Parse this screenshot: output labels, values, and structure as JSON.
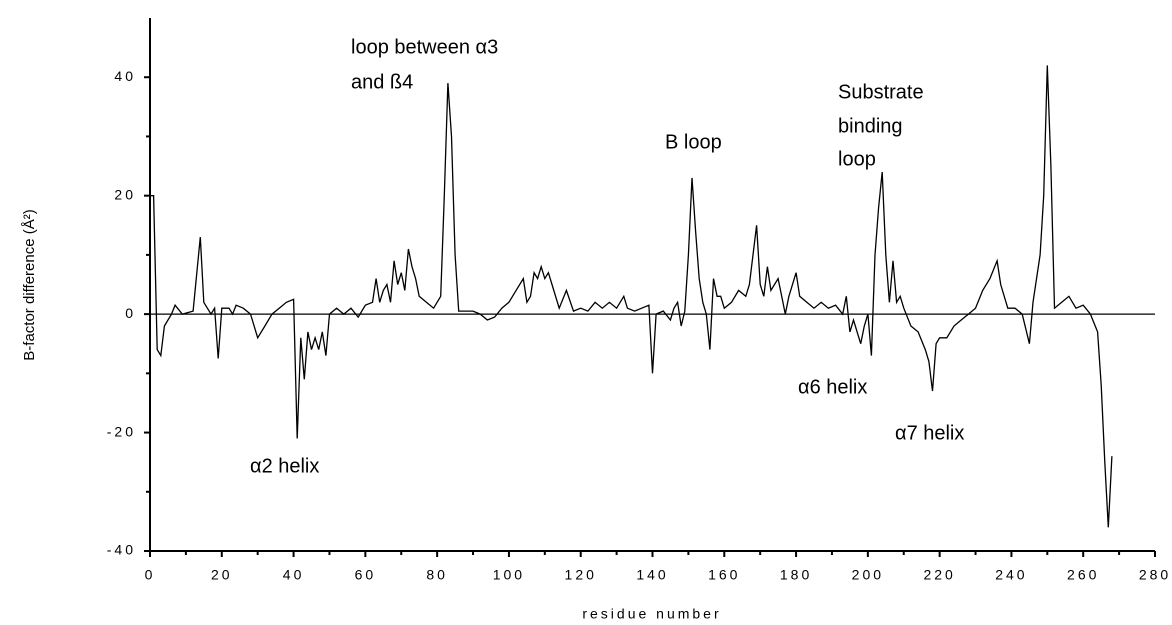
{
  "chart_data": {
    "type": "line",
    "x_label": "residue number",
    "y_label": "B-factor difference (Å²)",
    "xlim": [
      0,
      280
    ],
    "ylim": [
      -40,
      50
    ],
    "xticks": [
      0,
      20,
      40,
      60,
      80,
      100,
      120,
      140,
      160,
      180,
      200,
      220,
      240,
      260,
      280
    ],
    "yticks": [
      -40,
      -20,
      0,
      20,
      40
    ],
    "hline": 0,
    "color": "#000000",
    "annotations": [
      "loop between α3",
      "and ß4",
      "α2 helix",
      "B loop",
      "Substrate",
      "binding",
      "loop",
      "α6 helix",
      "α7 helix"
    ],
    "x": [
      0,
      1,
      2,
      3,
      4,
      6,
      7,
      9,
      12,
      14,
      15,
      16,
      17,
      18,
      19,
      20,
      22,
      23,
      24,
      26,
      28,
      30,
      32,
      34,
      36,
      38,
      40,
      41,
      42,
      43,
      44,
      45,
      46,
      47,
      48,
      49,
      50,
      52,
      54,
      56,
      58,
      60,
      62,
      63,
      64,
      65,
      66,
      67,
      68,
      69,
      70,
      71,
      72,
      73,
      74,
      75,
      77,
      79,
      80,
      81,
      82,
      83,
      84,
      85,
      86,
      88,
      90,
      92,
      94,
      96,
      98,
      100,
      102,
      104,
      105,
      106,
      107,
      108,
      109,
      110,
      111,
      112,
      114,
      116,
      118,
      120,
      122,
      124,
      126,
      128,
      130,
      132,
      133,
      135,
      137,
      139,
      140,
      141,
      143,
      145,
      146,
      147,
      148,
      149,
      150,
      151,
      152,
      153,
      154,
      155,
      156,
      157,
      158,
      159,
      160,
      162,
      164,
      166,
      167,
      168,
      169,
      170,
      171,
      172,
      173,
      175,
      176,
      177,
      178,
      180,
      181,
      183,
      185,
      187,
      189,
      191,
      193,
      194,
      195,
      196,
      198,
      199,
      200,
      201,
      202,
      203,
      204,
      205,
      206,
      207,
      208,
      209,
      210,
      212,
      214,
      216,
      217,
      218,
      219,
      220,
      222,
      224,
      226,
      228,
      230,
      232,
      234,
      236,
      237,
      239,
      241,
      243,
      245,
      246,
      248,
      249,
      250,
      251,
      252,
      254,
      256,
      258,
      260,
      262,
      264,
      265,
      266,
      267,
      268
    ],
    "values": [
      20,
      20,
      -6,
      -7,
      -2,
      0,
      1.5,
      0,
      0.5,
      13,
      2,
      1,
      0,
      1,
      -7.5,
      1,
      1,
      0,
      1.5,
      1,
      0,
      -4,
      -2,
      0,
      1,
      2,
      2.5,
      -21,
      -4,
      -11,
      -3,
      -6,
      -4,
      -6,
      -3,
      -7,
      0,
      1,
      0,
      1,
      -0.5,
      1.5,
      2,
      6,
      2,
      4,
      5,
      2,
      9,
      5,
      7,
      4,
      11,
      8,
      6,
      3,
      2,
      1,
      2,
      3,
      20,
      39,
      30,
      10,
      0.5,
      0.5,
      0.5,
      0,
      -1,
      -0.5,
      1,
      2,
      4,
      6,
      2,
      3,
      7,
      6,
      8,
      6,
      7,
      5,
      1,
      4,
      0.5,
      1,
      0.5,
      2,
      1,
      2,
      1,
      3,
      1,
      0.5,
      1,
      1.5,
      -10,
      0,
      0.5,
      -1,
      1,
      2,
      -2,
      0.5,
      10,
      23,
      14,
      6,
      2,
      0,
      -6,
      6,
      3,
      3,
      1,
      2,
      4,
      3,
      5,
      10,
      15,
      5,
      3,
      8,
      4,
      6,
      3,
      0,
      3,
      7,
      3,
      2,
      1,
      2,
      1,
      1.5,
      0,
      3,
      -3,
      -1,
      -5,
      -2,
      0,
      -7,
      10,
      18,
      24,
      10,
      2,
      9,
      2,
      3,
      1,
      -2,
      -3,
      -6,
      -8,
      -13,
      -5,
      -4,
      -4,
      -2,
      -1,
      0,
      1,
      4,
      6,
      9,
      5,
      1,
      1,
      0,
      -5,
      2,
      10,
      20,
      42,
      25,
      1,
      2,
      3,
      1,
      1.5,
      0,
      -3,
      -12,
      -25,
      -36,
      -24
    ]
  }
}
